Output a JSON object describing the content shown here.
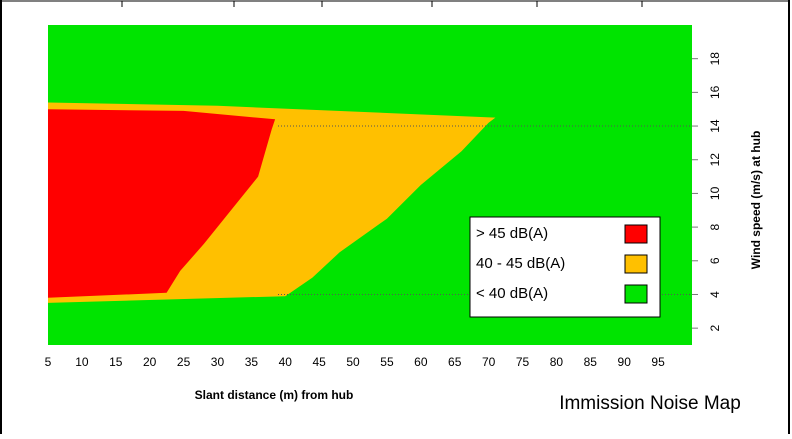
{
  "chart_data": {
    "type": "area",
    "title": "Immission Noise Map",
    "xlabel": "Slant distance (m) from hub",
    "ylabel": "Wind speed (m/s) at hub",
    "xlim": [
      5,
      100
    ],
    "ylim": [
      1,
      20
    ],
    "x_ticks": [
      5,
      10,
      15,
      20,
      25,
      30,
      35,
      40,
      45,
      50,
      55,
      60,
      65,
      70,
      75,
      80,
      85,
      90,
      95
    ],
    "y_ticks": [
      2,
      4,
      6,
      8,
      10,
      12,
      14,
      16,
      18
    ],
    "grid": "dotted horizontal at 4 and 14",
    "legend_position": "lower-right",
    "series": [
      {
        "name": "< 40 dB(A)",
        "color": "#00e400",
        "boundary": []
      },
      {
        "name": "40 - 45 dB(A)",
        "color": "#ffc000",
        "boundary": [
          [
            5,
            15.4
          ],
          [
            30,
            15.2
          ],
          [
            71,
            14.5
          ],
          [
            70,
            14.2
          ],
          [
            66,
            12.5
          ],
          [
            60,
            10.5
          ],
          [
            55,
            8.5
          ],
          [
            48,
            6.5
          ],
          [
            44,
            5.0
          ],
          [
            40,
            3.9
          ],
          [
            5,
            3.5
          ]
        ]
      },
      {
        "name": "> 45 dB(A)",
        "color": "#ff0000",
        "boundary": [
          [
            5,
            15.0
          ],
          [
            25,
            14.9
          ],
          [
            38.5,
            14.4
          ],
          [
            38,
            13.8
          ],
          [
            36,
            11.0
          ],
          [
            32,
            9.0
          ],
          [
            28,
            7.0
          ],
          [
            24.5,
            5.4
          ],
          [
            22.5,
            4.1
          ],
          [
            5,
            3.8
          ]
        ]
      }
    ]
  }
}
